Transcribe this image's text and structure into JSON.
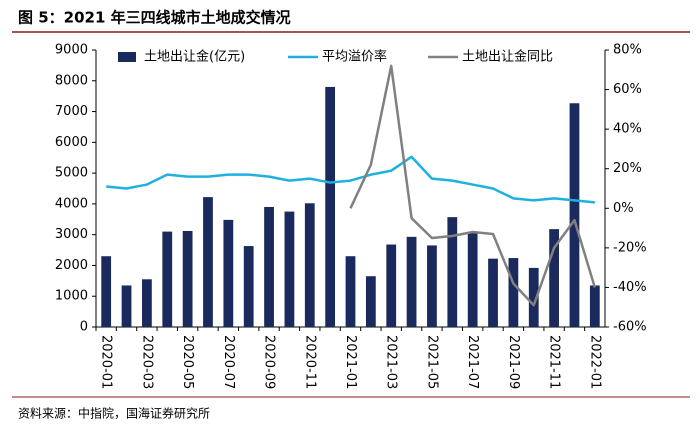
{
  "chart_data": {
    "type": "bar-line",
    "title": "图 5：2021 年三四线城市土地成交情况",
    "source": "资料来源：中指院，国海证券研究所",
    "categories": [
      "2020-01",
      null,
      "2020-03",
      null,
      "2020-05",
      null,
      "2020-07",
      null,
      "2020-09",
      null,
      "2020-11",
      null,
      "2021-01",
      null,
      "2021-03",
      null,
      "2021-05",
      null,
      "2021-07",
      null,
      "2021-09",
      null,
      "2021-11",
      null,
      "2022-01"
    ],
    "series": [
      {
        "name": "土地出让金(亿元)",
        "type": "bar",
        "color": "#1b2a5c",
        "values": [
          2300,
          1350,
          1550,
          3100,
          3120,
          4220,
          3480,
          2630,
          3900,
          3750,
          4020,
          7800,
          2300,
          1650,
          2680,
          2930,
          2650,
          3570,
          3100,
          2220,
          2240,
          1920,
          3180,
          7270,
          1350
        ]
      },
      {
        "name": "平均溢价率",
        "type": "line",
        "axis": "y2",
        "color": "#1fb0e0",
        "values": [
          11,
          10,
          12,
          17,
          16,
          16,
          17,
          17,
          16,
          14,
          15,
          13,
          14,
          17,
          19,
          26,
          15,
          14,
          12,
          10,
          5,
          4,
          5,
          4,
          3
        ]
      },
      {
        "name": "土地出让金同比",
        "type": "line",
        "axis": "y2",
        "color": "#808080",
        "values": [
          null,
          null,
          null,
          null,
          null,
          null,
          null,
          null,
          null,
          null,
          null,
          null,
          0,
          22,
          72,
          -5,
          -15,
          -14,
          -12,
          -13,
          -38,
          -49,
          -20,
          -6,
          -40
        ]
      }
    ],
    "ylim": [
      0,
      9000
    ],
    "yticks": [
      0,
      1000,
      2000,
      3000,
      4000,
      5000,
      6000,
      7000,
      8000,
      9000
    ],
    "y2lim": [
      -60,
      80
    ],
    "y2ticks": [
      {
        "value": -60,
        "label": "-60%"
      },
      {
        "value": -40,
        "label": "-40%"
      },
      {
        "value": -20,
        "label": "-20%"
      },
      {
        "value": 0,
        "label": "0%"
      },
      {
        "value": 20,
        "label": "20%"
      },
      {
        "value": 40,
        "label": "40%"
      },
      {
        "value": 60,
        "label": "60%"
      },
      {
        "value": 80,
        "label": "80%"
      }
    ],
    "legend": "top"
  }
}
